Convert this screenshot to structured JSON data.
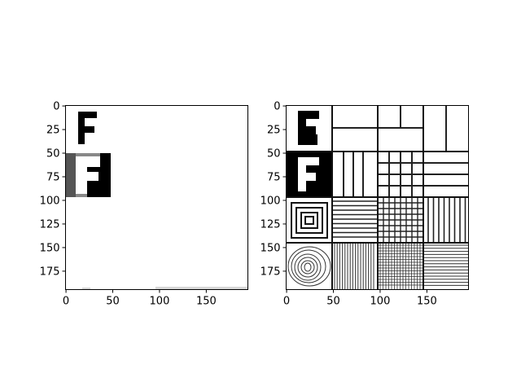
{
  "chart_data": [
    {
      "type": "heatmap",
      "title": "",
      "xlabel": "",
      "ylabel": "",
      "xlim": [
        -0.5,
        194.5
      ],
      "ylim": [
        194.5,
        -0.5
      ],
      "grid": false,
      "colormap": "gray",
      "x_ticks": [
        "0",
        "50",
        "100",
        "150"
      ],
      "y_ticks": [
        "0",
        "25",
        "50",
        "75",
        "100",
        "125",
        "150",
        "175"
      ],
      "x_tick_values": [
        0,
        50,
        100,
        150
      ],
      "y_tick_values": [
        0,
        25,
        50,
        75,
        100,
        125,
        150,
        175
      ],
      "content": "sparse 'F' glyph patches on white background"
    },
    {
      "type": "heatmap",
      "title": "",
      "xlabel": "",
      "ylabel": "",
      "xlim": [
        -0.5,
        194.5
      ],
      "ylim": [
        194.5,
        -0.5
      ],
      "grid": false,
      "colormap": "gray",
      "x_ticks": [
        "0",
        "50",
        "100",
        "150"
      ],
      "y_ticks": [
        "0",
        "25",
        "50",
        "75",
        "100",
        "125",
        "150",
        "175"
      ],
      "x_tick_values": [
        0,
        50,
        100,
        150
      ],
      "y_tick_values": [
        0,
        25,
        50,
        75,
        100,
        125,
        150,
        175
      ],
      "content": "4x4 mosaic of line-pattern tiles"
    }
  ]
}
